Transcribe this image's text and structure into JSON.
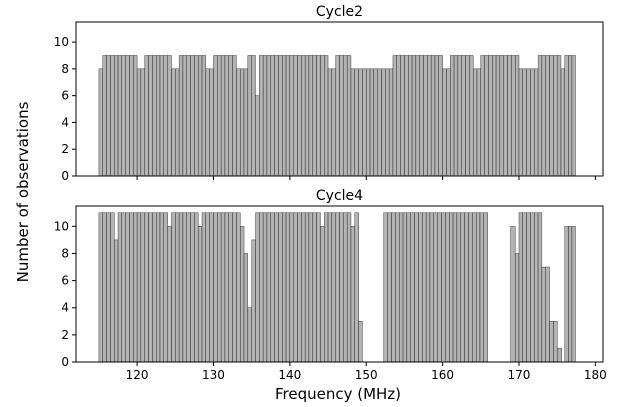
{
  "chart_data": {
    "type": "bar",
    "xlabel": "Frequency (MHz)",
    "ylabel": "Number of observations",
    "xlim": [
      112,
      181
    ],
    "xticks": [
      "120",
      "130",
      "140",
      "150",
      "160",
      "170",
      "180"
    ],
    "bar_color": "#b3b3b3",
    "edge_color": "#000000",
    "panels": [
      {
        "title": "Cycle2",
        "ylim": [
          0,
          11.5
        ],
        "yticks": [
          "0",
          "2",
          "4",
          "6",
          "8",
          "10"
        ],
        "series": [
          {
            "x_start": 115,
            "x_end": 177.4,
            "segments": [
              {
                "from": 115.0,
                "to": 115.5,
                "value": 8
              },
              {
                "from": 115.5,
                "to": 120.0,
                "value": 9
              },
              {
                "from": 120.0,
                "to": 121.0,
                "value": 8
              },
              {
                "from": 121.0,
                "to": 124.5,
                "value": 9
              },
              {
                "from": 124.5,
                "to": 125.5,
                "value": 8
              },
              {
                "from": 125.5,
                "to": 129.0,
                "value": 9
              },
              {
                "from": 129.0,
                "to": 130.0,
                "value": 8
              },
              {
                "from": 130.0,
                "to": 133.0,
                "value": 9
              },
              {
                "from": 133.0,
                "to": 134.5,
                "value": 8
              },
              {
                "from": 134.5,
                "to": 135.5,
                "value": 9
              },
              {
                "from": 135.5,
                "to": 136.0,
                "value": 6
              },
              {
                "from": 136.0,
                "to": 140.0,
                "value": 9
              },
              {
                "from": 140.0,
                "to": 145.0,
                "value": 9
              },
              {
                "from": 145.0,
                "to": 146.0,
                "value": 8
              },
              {
                "from": 146.0,
                "to": 148.0,
                "value": 9
              },
              {
                "from": 148.0,
                "to": 149.0,
                "value": 8
              },
              {
                "from": 149.0,
                "to": 153.5,
                "value": 8
              },
              {
                "from": 153.5,
                "to": 160.0,
                "value": 9
              },
              {
                "from": 160.0,
                "to": 161.0,
                "value": 8
              },
              {
                "from": 161.0,
                "to": 164.0,
                "value": 9
              },
              {
                "from": 164.0,
                "to": 165.0,
                "value": 8
              },
              {
                "from": 165.0,
                "to": 170.0,
                "value": 9
              },
              {
                "from": 170.0,
                "to": 172.5,
                "value": 8
              },
              {
                "from": 172.5,
                "to": 175.5,
                "value": 9
              },
              {
                "from": 175.5,
                "to": 176.0,
                "value": 8
              },
              {
                "from": 176.0,
                "to": 177.4,
                "value": 9
              }
            ]
          }
        ]
      },
      {
        "title": "Cycle4",
        "ylim": [
          0,
          11.5
        ],
        "yticks": [
          "0",
          "2",
          "4",
          "6",
          "8",
          "10"
        ],
        "series": [
          {
            "x_start": 115,
            "x_end": 177.4,
            "segments": [
              {
                "from": 115.0,
                "to": 117.0,
                "value": 11
              },
              {
                "from": 117.0,
                "to": 117.5,
                "value": 9
              },
              {
                "from": 117.5,
                "to": 124.0,
                "value": 11
              },
              {
                "from": 124.0,
                "to": 124.5,
                "value": 10
              },
              {
                "from": 124.5,
                "to": 128.0,
                "value": 11
              },
              {
                "from": 128.0,
                "to": 128.5,
                "value": 10
              },
              {
                "from": 128.5,
                "to": 133.5,
                "value": 11
              },
              {
                "from": 133.5,
                "to": 134.0,
                "value": 10
              },
              {
                "from": 134.0,
                "to": 134.5,
                "value": 8
              },
              {
                "from": 134.5,
                "to": 135.0,
                "value": 4
              },
              {
                "from": 135.0,
                "to": 135.5,
                "value": 9
              },
              {
                "from": 135.5,
                "to": 137.5,
                "value": 11
              },
              {
                "from": 137.5,
                "to": 144.0,
                "value": 11
              },
              {
                "from": 144.0,
                "to": 144.5,
                "value": 10
              },
              {
                "from": 144.5,
                "to": 148.0,
                "value": 11
              },
              {
                "from": 148.0,
                "to": 148.5,
                "value": 10
              },
              {
                "from": 148.5,
                "to": 149.0,
                "value": 11
              },
              {
                "from": 149.0,
                "to": 149.5,
                "value": 3
              },
              {
                "from": 149.5,
                "to": 152.3,
                "value": 0
              },
              {
                "from": 152.3,
                "to": 165.9,
                "value": 11
              },
              {
                "from": 165.9,
                "to": 168.9,
                "value": 0
              },
              {
                "from": 168.9,
                "to": 169.5,
                "value": 10
              },
              {
                "from": 169.5,
                "to": 170.0,
                "value": 8
              },
              {
                "from": 170.0,
                "to": 173.0,
                "value": 11
              },
              {
                "from": 173.0,
                "to": 174.0,
                "value": 7
              },
              {
                "from": 174.0,
                "to": 175.0,
                "value": 3
              },
              {
                "from": 175.0,
                "to": 175.6,
                "value": 1
              },
              {
                "from": 175.6,
                "to": 176.0,
                "value": 0
              },
              {
                "from": 176.0,
                "to": 177.4,
                "value": 10
              }
            ]
          }
        ]
      }
    ]
  }
}
